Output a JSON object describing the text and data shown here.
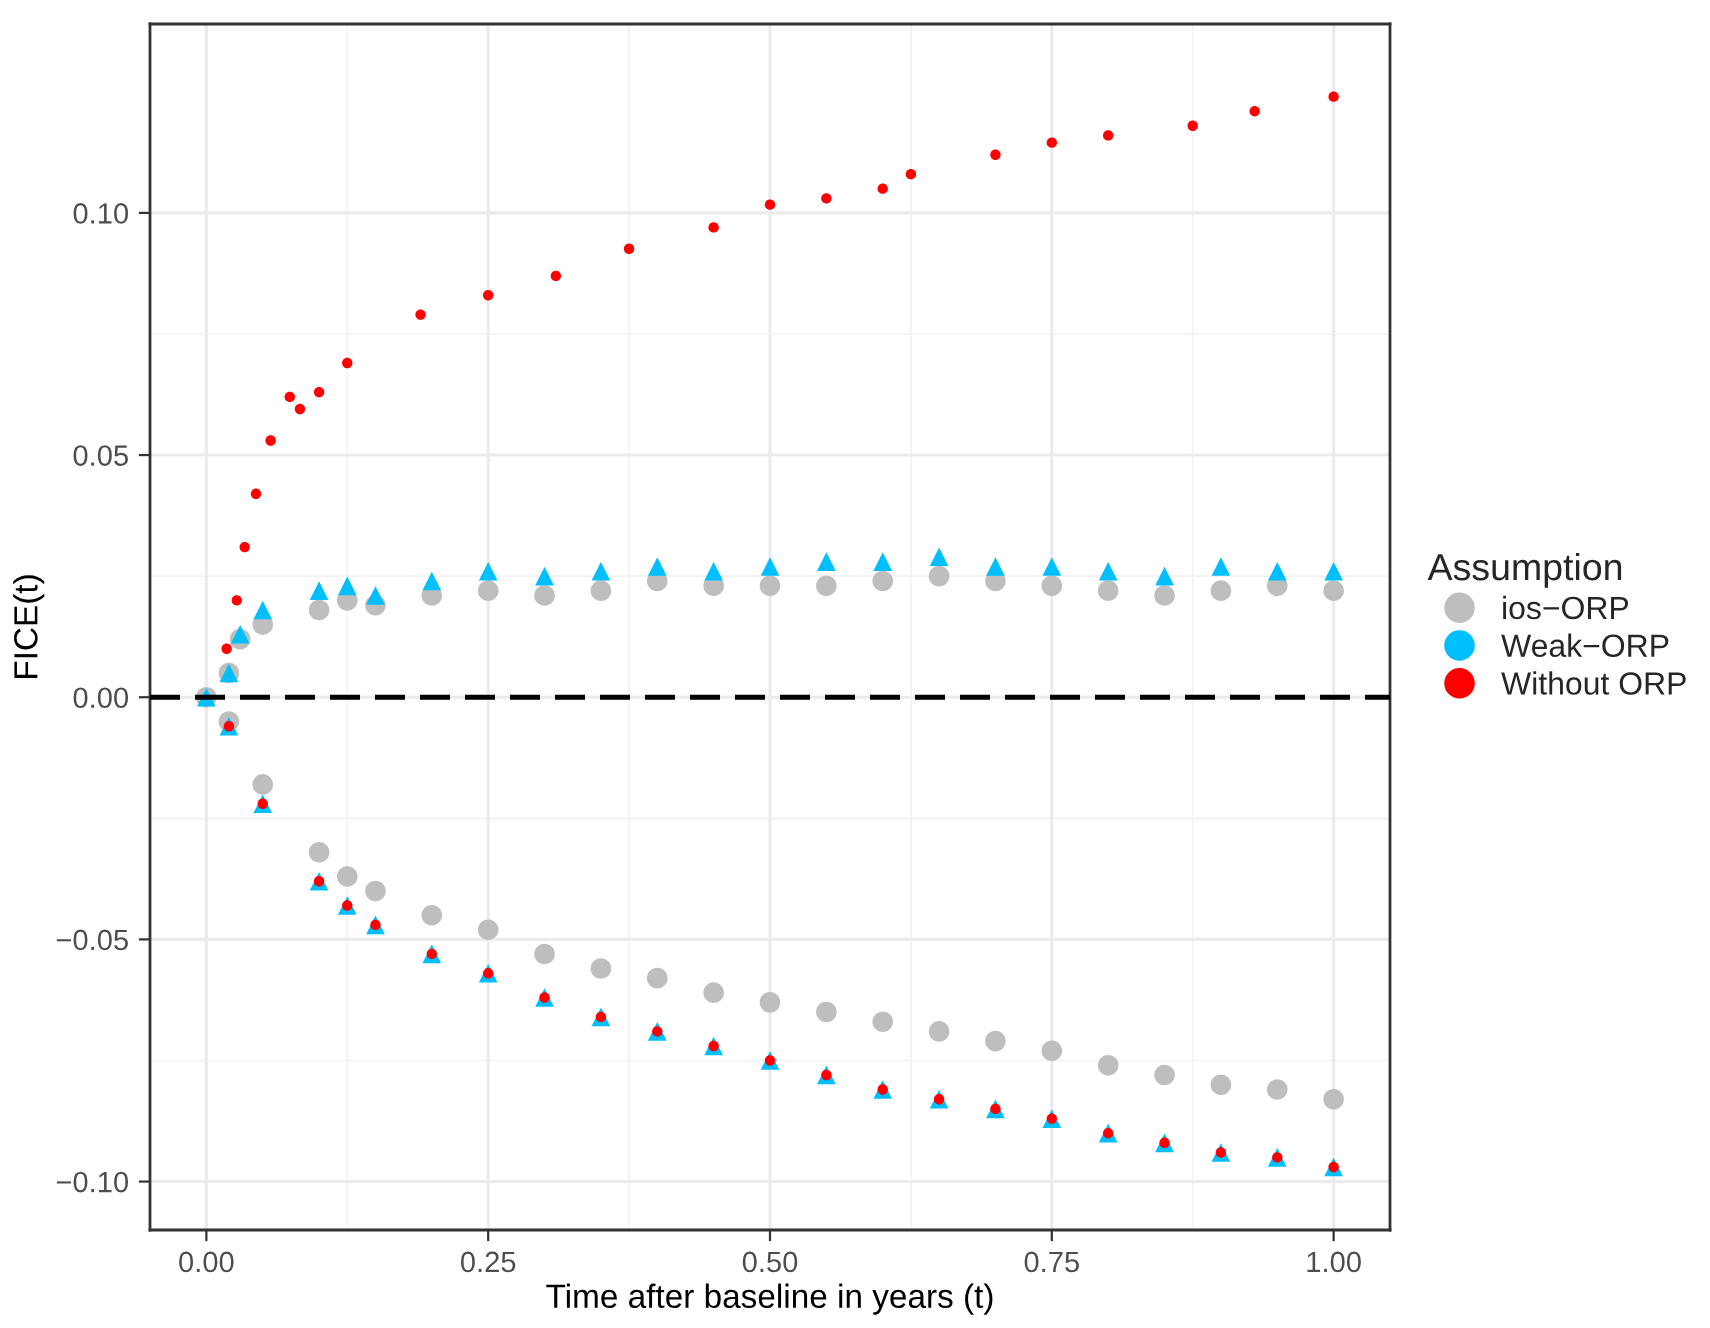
{
  "chart_data": {
    "type": "scatter",
    "xlabel": "Time after baseline in years (t)",
    "ylabel": "FICE(t)",
    "legend_title": "Assumption",
    "legend": "right",
    "xlim": [
      -0.05,
      1.05
    ],
    "ylim": [
      -0.11,
      0.139
    ],
    "xticks": [
      {
        "value": 0,
        "label": "0.00"
      },
      0.25,
      {
        "value": 0.5,
        "label": "0.50"
      },
      0.75,
      {
        "value": 1,
        "label": "1.00"
      }
    ],
    "yticks": [
      {
        "value": -0.1,
        "label": "−0.10"
      },
      {
        "value": -0.05,
        "label": "−0.05"
      },
      {
        "value": 0,
        "label": "0.00"
      },
      0.05,
      {
        "value": 0.1,
        "label": "0.10"
      }
    ],
    "grid": true,
    "ref_lines": [
      {
        "axis": "y",
        "value": 0,
        "color": "#000000",
        "line_style": "dashed"
      }
    ],
    "series": [
      {
        "name": "ios−ORP",
        "color": "#bebebe",
        "marker": "circle",
        "x": [
          0.02,
          0.03,
          0.05,
          0.1,
          0.125,
          0.15,
          0.2,
          0.25,
          0.3,
          0.35,
          0.4,
          0.45,
          0.5,
          0.55,
          0.6,
          0.65,
          0.7,
          0.75,
          0.8,
          0.85,
          0.9,
          0.95,
          1.0,
          0.0,
          0.02,
          0.05,
          0.1,
          0.125,
          0.15,
          0.2,
          0.25,
          0.3,
          0.35,
          0.4,
          0.45,
          0.5,
          0.55,
          0.6,
          0.65,
          0.7,
          0.75,
          0.8,
          0.85,
          0.9,
          0.95,
          1.0
        ],
        "values": [
          0.005,
          0.012,
          0.015,
          0.018,
          0.02,
          0.019,
          0.021,
          0.022,
          0.021,
          0.022,
          0.024,
          0.023,
          0.023,
          0.023,
          0.024,
          0.025,
          0.024,
          0.023,
          0.022,
          0.021,
          0.022,
          0.023,
          0.022,
          0.0,
          -0.005,
          -0.018,
          -0.032,
          -0.037,
          -0.04,
          -0.045,
          -0.048,
          -0.053,
          -0.056,
          -0.058,
          -0.061,
          -0.063,
          -0.065,
          -0.067,
          -0.069,
          -0.071,
          -0.073,
          -0.076,
          -0.078,
          -0.08,
          -0.081,
          -0.083
        ]
      },
      {
        "name": "Weak−ORP",
        "color": "#00bfff",
        "marker": "triangle",
        "x": [
          0.02,
          0.03,
          0.05,
          0.1,
          0.125,
          0.15,
          0.2,
          0.25,
          0.3,
          0.35,
          0.4,
          0.45,
          0.5,
          0.55,
          0.6,
          0.65,
          0.7,
          0.75,
          0.8,
          0.85,
          0.9,
          0.95,
          1.0,
          0.0,
          0.02,
          0.05,
          0.1,
          0.125,
          0.15,
          0.2,
          0.25,
          0.3,
          0.35,
          0.4,
          0.45,
          0.5,
          0.55,
          0.6,
          0.65,
          0.7,
          0.75,
          0.8,
          0.85,
          0.9,
          0.95,
          1.0
        ],
        "values": [
          0.005,
          0.013,
          0.018,
          0.022,
          0.023,
          0.021,
          0.024,
          0.026,
          0.025,
          0.026,
          0.027,
          0.026,
          0.027,
          0.028,
          0.028,
          0.029,
          0.027,
          0.027,
          0.026,
          0.025,
          0.027,
          0.026,
          0.026,
          0.0,
          -0.006,
          -0.022,
          -0.038,
          -0.043,
          -0.047,
          -0.053,
          -0.057,
          -0.062,
          -0.066,
          -0.069,
          -0.072,
          -0.075,
          -0.078,
          -0.081,
          -0.083,
          -0.085,
          -0.087,
          -0.09,
          -0.092,
          -0.094,
          -0.095,
          -0.097
        ]
      },
      {
        "name": "Without ORP",
        "color": "#ff0000",
        "marker": "circle",
        "x": [
          0.018,
          0.027,
          0.034,
          0.044,
          0.057,
          0.074,
          0.083,
          0.1,
          0.125,
          0.19,
          0.25,
          0.31,
          0.375,
          0.45,
          0.5,
          0.55,
          0.6,
          0.625,
          0.7,
          0.75,
          0.8,
          0.875,
          0.93,
          1.0,
          0.02,
          0.05,
          0.1,
          0.125,
          0.15,
          0.2,
          0.25,
          0.3,
          0.35,
          0.4,
          0.45,
          0.5,
          0.55,
          0.6,
          0.65,
          0.7,
          0.75,
          0.8,
          0.85,
          0.9,
          0.95,
          1.0
        ],
        "values": [
          0.01,
          0.02,
          0.031,
          0.042,
          0.053,
          0.062,
          0.0595,
          0.063,
          0.069,
          0.079,
          0.083,
          0.087,
          0.0926,
          0.097,
          0.1017,
          0.103,
          0.105,
          0.108,
          0.112,
          0.1145,
          0.116,
          0.118,
          0.121,
          0.124,
          -0.006,
          -0.022,
          -0.038,
          -0.043,
          -0.047,
          -0.053,
          -0.057,
          -0.062,
          -0.066,
          -0.069,
          -0.072,
          -0.075,
          -0.078,
          -0.081,
          -0.083,
          -0.085,
          -0.087,
          -0.09,
          -0.092,
          -0.094,
          -0.095,
          -0.097
        ]
      }
    ]
  }
}
